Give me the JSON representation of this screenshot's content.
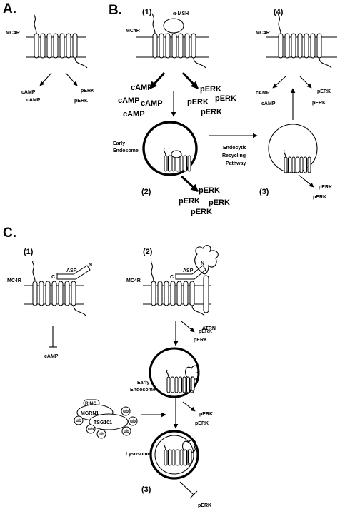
{
  "panels": {
    "a": "A.",
    "b": "B.",
    "c": "C."
  },
  "steps": {
    "b1": "(1)",
    "b2": "(2)",
    "b3": "(3)",
    "b4": "(4)",
    "c1": "(1)",
    "c2": "(2)",
    "c3": "(3)"
  },
  "labels": {
    "mc4r": "MC4R",
    "alpha_msh": "α-MSH",
    "early": "Early",
    "endosome": "Endosome",
    "endocytic": "Endocytic",
    "recycling": "Recycling",
    "pathway": "Pathway",
    "asp": "ASP",
    "c_term": "C",
    "n_term": "N",
    "atrn": "ATRN",
    "lysosome": "Lysosome",
    "ring": "RING",
    "mgrn1": "MGRN1",
    "tsg101": "TSG101",
    "ub": "ub"
  },
  "signals": {
    "camp": "cAMP",
    "perk": "pERK"
  }
}
